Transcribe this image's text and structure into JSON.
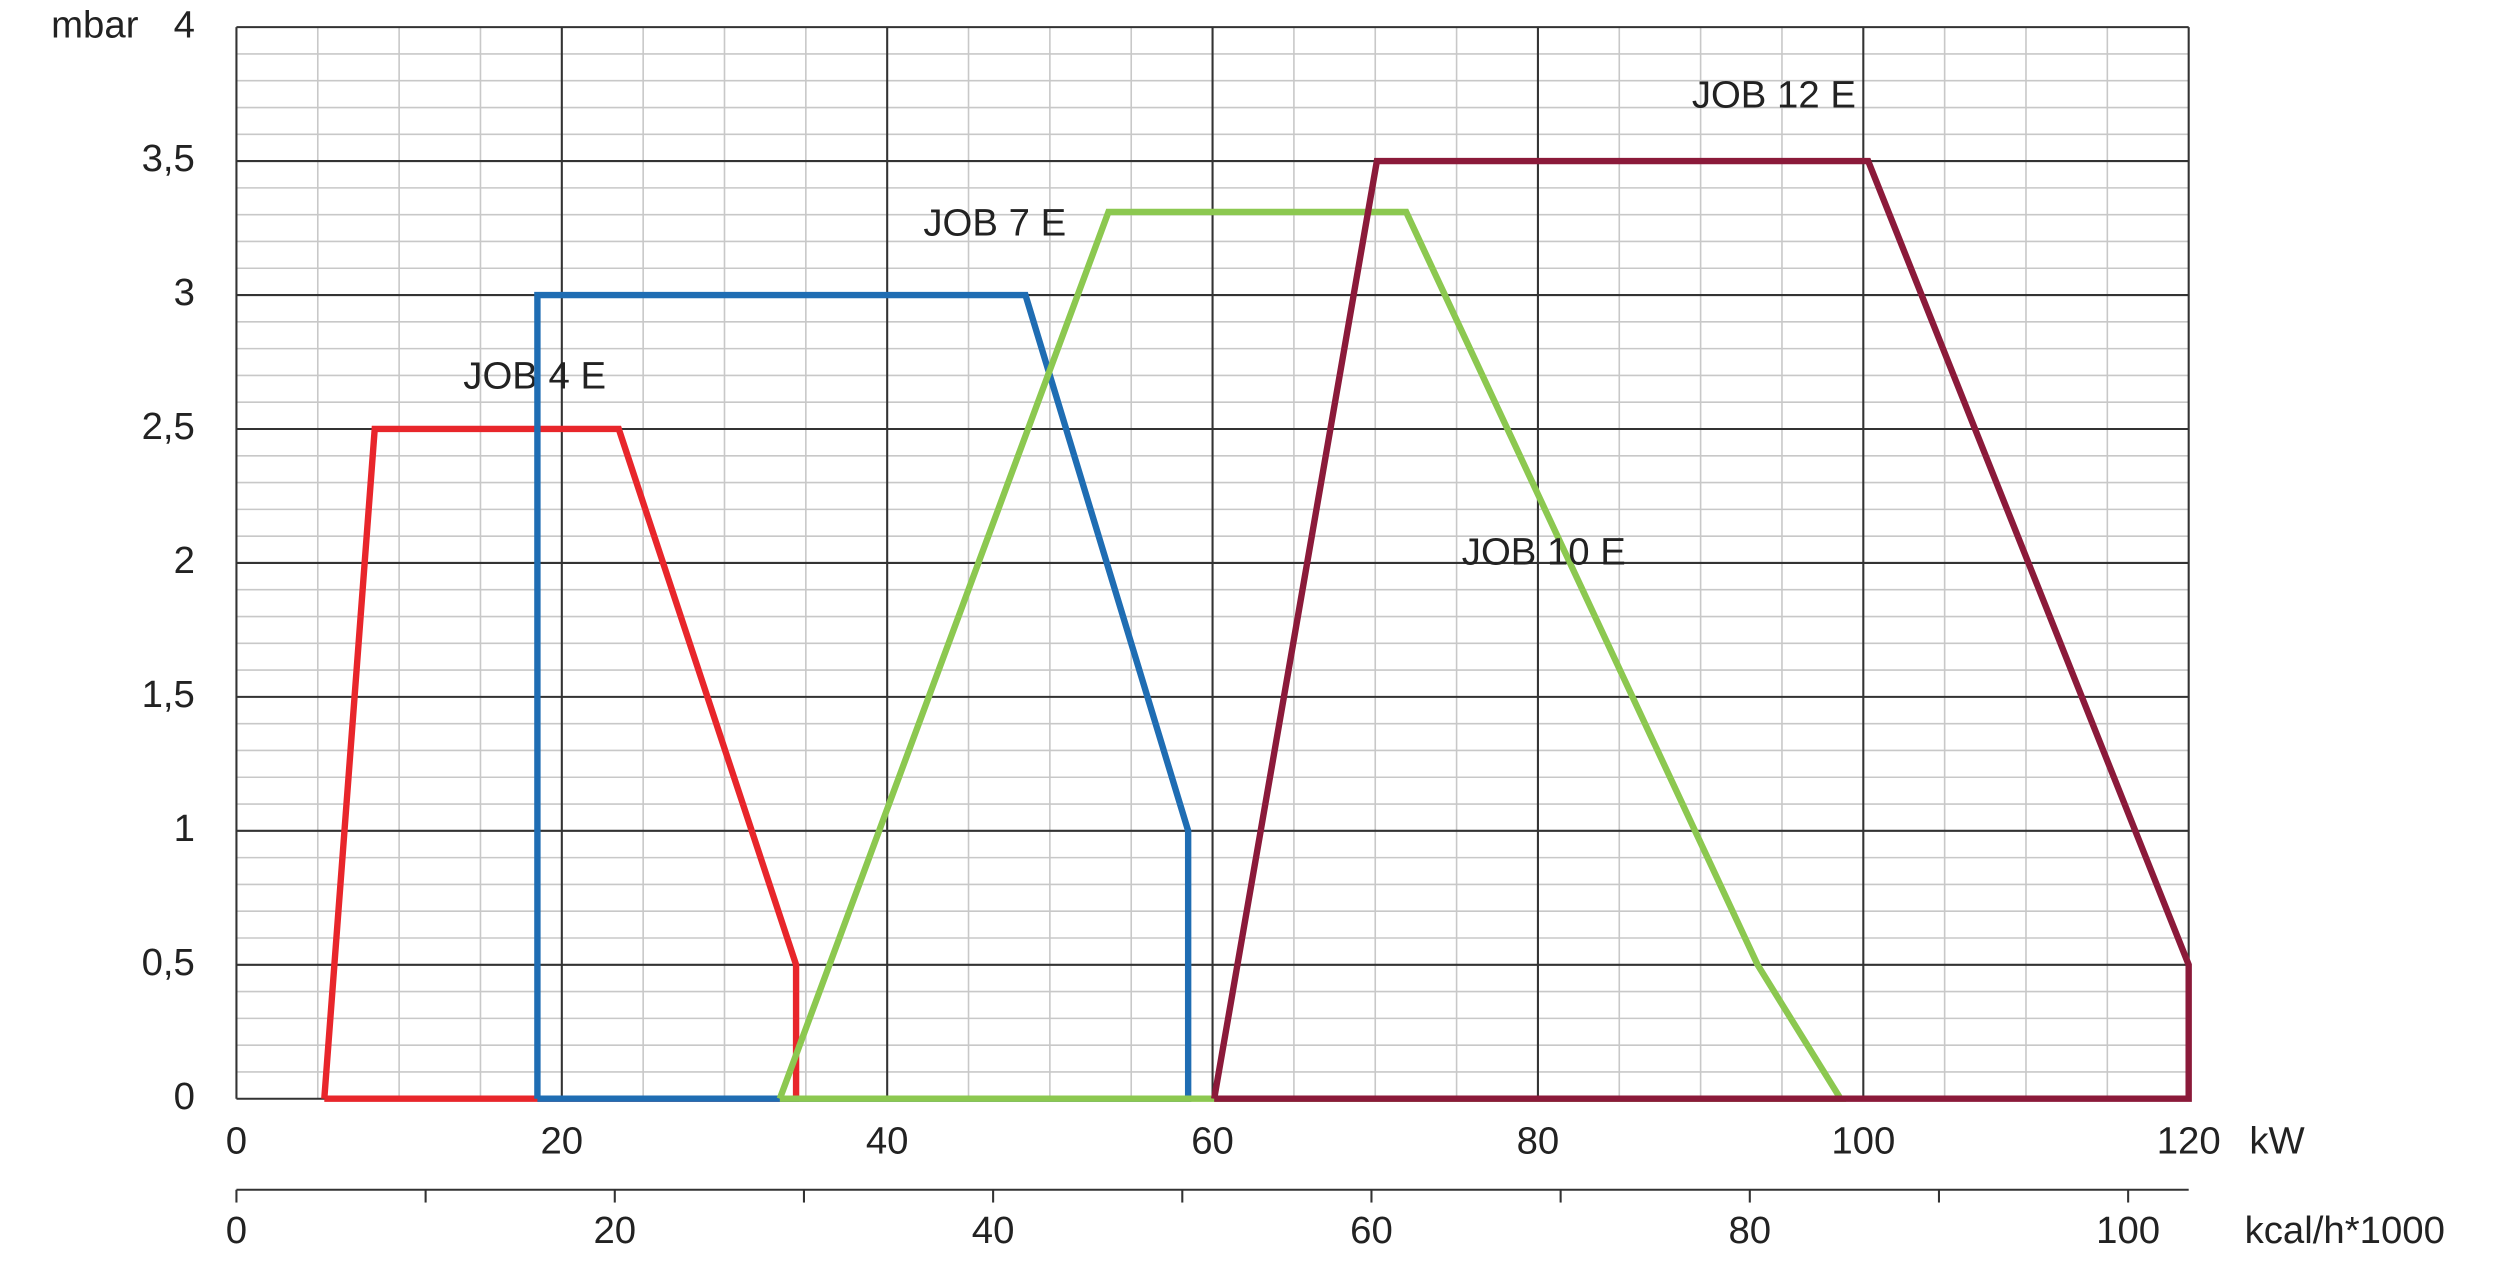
{
  "chart_data": {
    "type": "line",
    "y_label": "mbar",
    "x_label": "kW",
    "x2_label": "kcal/h*1000",
    "xlim": [
      0,
      120
    ],
    "xticks": [
      0,
      20,
      40,
      60,
      80,
      100,
      120
    ],
    "ylim": [
      0,
      4
    ],
    "yticks": [
      0,
      {
        "value": 0.5,
        "label": "0,5"
      },
      1,
      {
        "value": 1.5,
        "label": "1,5"
      },
      2,
      {
        "value": 2.5,
        "label": "2,5"
      },
      3,
      {
        "value": 3.5,
        "label": "3,5"
      },
      4
    ],
    "x2lim": [
      0,
      103.2
    ],
    "x2ticks": [
      0,
      20,
      40,
      60,
      80,
      100
    ],
    "x2minor_ticks": [
      10,
      30,
      50,
      70,
      90
    ],
    "grid": true,
    "minor_grid": {
      "x_step": 5,
      "y_step": 0.1
    },
    "series": [
      {
        "name": "JOB 4 E",
        "color": "#e8262b",
        "x": [
          5.4,
          8.5,
          23.5,
          34.4,
          34.4,
          5.4
        ],
        "values": [
          0,
          2.5,
          2.5,
          0.5,
          0,
          0
        ]
      },
      {
        "name": "JOB 7 E",
        "color": "#1f6db3",
        "x": [
          18.5,
          18.5,
          48.5,
          58.5,
          58.5,
          18.5
        ],
        "values": [
          0,
          3,
          3,
          1,
          0,
          0
        ]
      },
      {
        "name": "JOB 10 E",
        "color": "#8cc850",
        "x": [
          33.4,
          53.6,
          71.9,
          93.5,
          98.6,
          33.4
        ],
        "values": [
          0,
          3.31,
          3.31,
          0.5,
          0,
          0
        ]
      },
      {
        "name": "JOB 12 E",
        "color": "#8b1a3a",
        "x": [
          60.1,
          70.1,
          100.3,
          120,
          120,
          60.1
        ],
        "values": [
          0,
          3.5,
          3.5,
          0.5,
          0,
          0
        ]
      }
    ]
  }
}
